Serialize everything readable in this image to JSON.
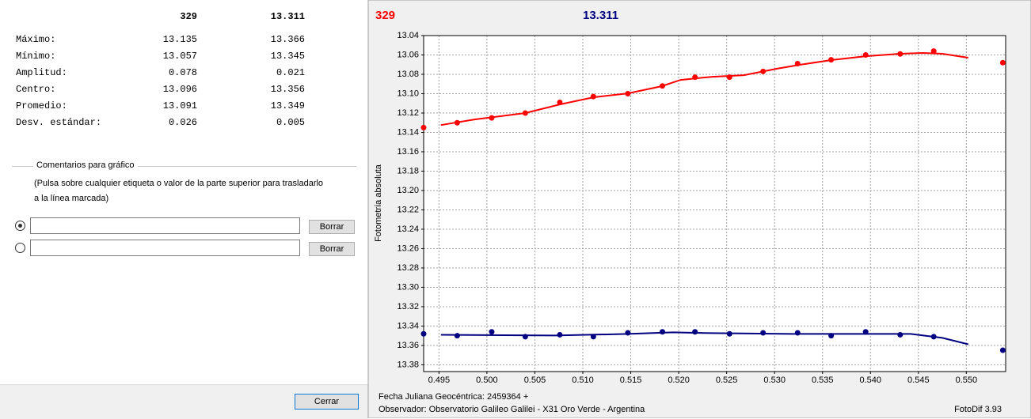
{
  "stats": {
    "columns": [
      "329",
      "13.311"
    ],
    "rows": [
      {
        "label": "Máximo:",
        "values": [
          "13.135",
          "13.366"
        ]
      },
      {
        "label": "Mínimo:",
        "values": [
          "13.057",
          "13.345"
        ]
      },
      {
        "label": "Amplitud:",
        "values": [
          "0.078",
          "0.021"
        ]
      },
      {
        "label": "Centro:",
        "values": [
          "13.096",
          "13.356"
        ]
      },
      {
        "label": "Promedio:",
        "values": [
          "13.091",
          "13.349"
        ]
      },
      {
        "label": "Desv. estándar:",
        "values": [
          "0.026",
          "0.005"
        ]
      }
    ]
  },
  "comments": {
    "title": "Comentarios para gráfico",
    "instructions": "(Pulsa sobre cualquier etiqueta o valor de la parte superior para trasladarlo a la línea marcada)",
    "clear_button": "Borrar"
  },
  "close_button": "Cerrar",
  "chart_data": {
    "type": "scatter",
    "ylabel": "Fotometría absoluta",
    "xlim": [
      0.4934,
      0.5541
    ],
    "xticks": [
      0.495,
      {
        "value": 0.5,
        "label": "0.500"
      },
      0.505,
      {
        "value": 0.51,
        "label": "0.510"
      },
      0.515,
      {
        "value": 0.52,
        "label": "0.520"
      },
      0.525,
      {
        "value": 0.53,
        "label": "0.530"
      },
      0.535,
      {
        "value": 0.54,
        "label": "0.540"
      },
      0.545,
      {
        "value": 0.55,
        "label": "0.550"
      }
    ],
    "ylim": [
      13.387,
      13.04
    ],
    "yticks": [
      13.04,
      13.06,
      13.08,
      {
        "value": 13.1,
        "label": "13.10"
      },
      13.12,
      13.14,
      13.16,
      13.18,
      {
        "value": 13.2,
        "label": "13.20"
      },
      13.22,
      13.24,
      13.26,
      13.28,
      {
        "value": 13.3,
        "label": "13.30"
      },
      13.32,
      13.34,
      13.36,
      13.38
    ],
    "grid": true,
    "series": [
      {
        "name": "329",
        "color": "#ff0000",
        "x": [
          0.4934,
          0.4969,
          0.5005,
          0.504,
          0.5076,
          0.5111,
          0.5147,
          0.5183,
          0.5217,
          0.5253,
          0.5288,
          0.5324,
          0.5359,
          0.5395,
          0.5431,
          0.5466,
          0.5538
        ],
        "values": [
          13.135,
          13.13,
          13.125,
          13.12,
          13.109,
          13.103,
          13.1,
          13.092,
          13.083,
          13.083,
          13.077,
          13.069,
          13.065,
          13.06,
          13.059,
          13.056,
          13.068
        ],
        "fit": {
          "x": [
            0.4952,
            0.4987,
            0.504,
            0.5076,
            0.5111,
            0.5147,
            0.5182,
            0.5202,
            0.5235,
            0.5268,
            0.5302,
            0.5326,
            0.5359,
            0.5395,
            0.5431,
            0.5455,
            0.5475,
            0.5502
          ],
          "values": [
            13.1324,
            13.1266,
            13.12,
            13.1111,
            13.1038,
            13.0997,
            13.0923,
            13.0858,
            13.0825,
            13.0809,
            13.0743,
            13.0702,
            13.0653,
            13.0613,
            13.0588,
            13.058,
            13.0588,
            13.0629
          ]
        }
      },
      {
        "name": "13.311",
        "color": "#000080",
        "x": [
          0.4934,
          0.4969,
          0.5005,
          0.504,
          0.5076,
          0.5111,
          0.5147,
          0.5183,
          0.5217,
          0.5253,
          0.5288,
          0.5324,
          0.5359,
          0.5395,
          0.5431,
          0.5466,
          0.5538
        ],
        "values": [
          13.348,
          13.35,
          13.346,
          13.351,
          13.349,
          13.351,
          13.347,
          13.346,
          13.346,
          13.348,
          13.347,
          13.347,
          13.35,
          13.346,
          13.349,
          13.351,
          13.365
        ],
        "fit": {
          "x": [
            0.4952,
            0.507,
            0.5147,
            0.5194,
            0.5235,
            0.5318,
            0.5442,
            0.5475,
            0.5502
          ],
          "values": [
            13.349,
            13.3498,
            13.3481,
            13.3465,
            13.3473,
            13.3481,
            13.3481,
            13.3522,
            13.3588
          ]
        }
      }
    ],
    "footer": {
      "date": "Fecha Juliana Geocéntrica: 2459364 +",
      "observer": "Observador: Observatorio Galileo Galilei - X31 Oro Verde - Argentina",
      "version": "FotoDif 3.93"
    }
  }
}
